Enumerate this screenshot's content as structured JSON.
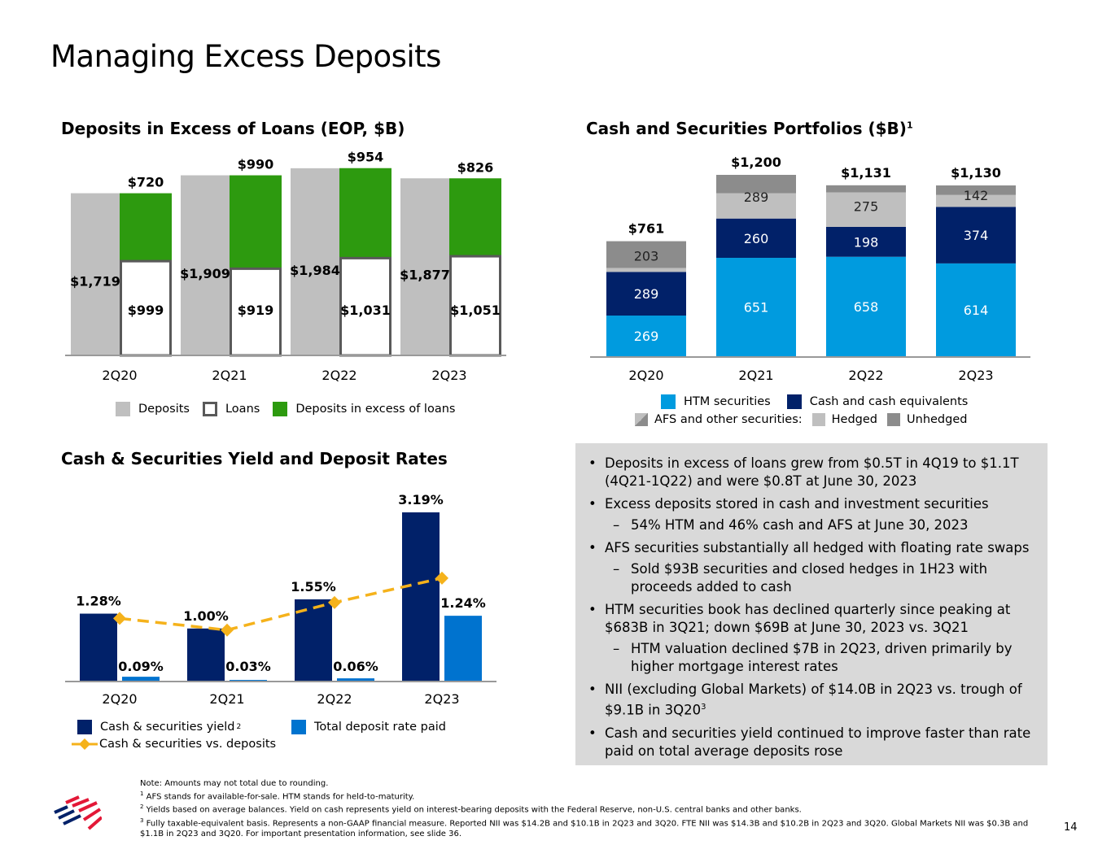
{
  "page": {
    "title": "Managing Excess Deposits",
    "page_number": "14"
  },
  "chart_data": [
    {
      "id": "deposits_vs_loans",
      "type": "bar",
      "title": "Deposits in Excess of Loans (EOP, $B)",
      "categories": [
        "2Q20",
        "2Q21",
        "2Q22",
        "2Q23"
      ],
      "series": [
        {
          "name": "Deposits",
          "values": [
            1719,
            1909,
            1984,
            1877
          ],
          "labels": [
            "$1,719",
            "$1,909",
            "$1,984",
            "$1,877"
          ],
          "color": "#bfbfbf"
        },
        {
          "name": "Loans",
          "values": [
            999,
            919,
            1031,
            1051
          ],
          "labels": [
            "$999",
            "$919",
            "$1,031",
            "$1,051"
          ],
          "color": "#ffffff"
        },
        {
          "name": "Deposits in excess of loans",
          "values": [
            720,
            990,
            954,
            826
          ],
          "labels": [
            "$720",
            "$990",
            "$954",
            "$826"
          ],
          "color": "#2d9a0f"
        }
      ],
      "stacked": "loans + excess stacked beside deposits",
      "ylim": [
        0,
        2000
      ],
      "grid": false,
      "legend": "bottom"
    },
    {
      "id": "cash_securities_portfolios",
      "type": "bar",
      "stacked": true,
      "title": "Cash and Securities Portfolios ($B)",
      "title_footnote": "1",
      "categories": [
        "2Q20",
        "2Q21",
        "2Q22",
        "2Q23"
      ],
      "totals": [
        "$761",
        "$1,200",
        "$1,131",
        "$1,130"
      ],
      "total_values": [
        761,
        1200,
        1131,
        1130
      ],
      "series": [
        {
          "name": "HTM securities",
          "values": [
            269,
            651,
            658,
            614
          ],
          "color": "#009bdf"
        },
        {
          "name": "Cash and cash equivalents",
          "values": [
            289,
            260,
            198,
            374
          ],
          "color": "#012169"
        },
        {
          "name": "AFS and other securities: Hedged",
          "values": [
            26,
            167,
            228,
            79
          ],
          "color": "#bfbfbf"
        },
        {
          "name": "AFS and other securities: Unhedged",
          "values": [
            177,
            122,
            47,
            63
          ],
          "color": "#8c8c8c"
        }
      ],
      "afs_totals": [
        203,
        289,
        275,
        142
      ],
      "ylim": [
        0,
        1250
      ],
      "grid": false,
      "legend": "bottom",
      "legend_afs_label": "AFS and other securities:",
      "legend_hedged": "Hedged",
      "legend_unhedged": "Unhedged"
    },
    {
      "id": "yield_and_rates",
      "type": "bar",
      "title": "Cash & Securities Yield and Deposit Rates",
      "categories": [
        "2Q20",
        "2Q21",
        "2Q22",
        "2Q23"
      ],
      "series": [
        {
          "name": "Cash & securities yield",
          "footnote": "2",
          "values": [
            1.28,
            1.0,
            1.55,
            3.19
          ],
          "labels": [
            "1.28%",
            "1.00%",
            "1.55%",
            "3.19%"
          ],
          "color": "#012169"
        },
        {
          "name": "Total deposit rate paid",
          "values": [
            0.09,
            0.03,
            0.06,
            1.24
          ],
          "labels": [
            "0.09%",
            "0.03%",
            "0.06%",
            "1.24%"
          ],
          "color": "#0073cf"
        },
        {
          "name": "Cash & securities vs. deposits",
          "type": "line",
          "values": [
            1.19,
            0.97,
            1.49,
            1.95
          ],
          "color": "#f5b21b",
          "style": "dashed-diamond"
        }
      ],
      "ylim": [
        0,
        3.3
      ],
      "grid": false,
      "legend": "bottom"
    }
  ],
  "bullets": [
    {
      "level": 1,
      "marker": "•",
      "text": "Deposits in excess of loans grew from $0.5T in 4Q19 to $1.1T (4Q21-1Q22) and were $0.8T at June 30, 2023"
    },
    {
      "level": 1,
      "marker": "•",
      "text": "Excess deposits stored in cash and investment securities"
    },
    {
      "level": 2,
      "marker": "–",
      "text": "54% HTM and 46% cash and AFS at June 30, 2023"
    },
    {
      "level": 1,
      "marker": "•",
      "text": "AFS securities substantially all hedged with floating rate swaps"
    },
    {
      "level": 2,
      "marker": "–",
      "text": "Sold $93B securities and closed hedges in 1H23 with proceeds added to cash"
    },
    {
      "level": 1,
      "marker": "•",
      "text": "HTM securities book has declined quarterly since peaking at $683B in 3Q21; down $69B at June 30, 2023 vs. 3Q21"
    },
    {
      "level": 2,
      "marker": "–",
      "text": "HTM valuation declined $7B in 2Q23, driven primarily by higher mortgage interest rates"
    },
    {
      "level": 1,
      "marker": "•",
      "text": "NII (excluding Global Markets) of $14.0B in 2Q23 vs. trough of $9.1B in 3Q20",
      "footnote": "3"
    },
    {
      "level": 1,
      "marker": "•",
      "text": "Cash and securities yield continued to improve faster than rate paid on total average deposits rose"
    }
  ],
  "footnotes": {
    "note": "Note: Amounts may not total due to rounding.",
    "items": [
      {
        "num": "1",
        "text": "AFS stands for available-for-sale. HTM stands for held-to-maturity."
      },
      {
        "num": "2",
        "text": "Yields based on average balances. Yield on cash represents yield on interest-bearing deposits with the Federal Reserve, non-U.S. central banks and other banks."
      },
      {
        "num": "3",
        "text": "Fully taxable-equivalent basis. Represents a non-GAAP financial measure. Reported NII was $14.2B and $10.1B in 2Q23 and 3Q20. FTE NII was $14.3B and $10.2B in 2Q23 and 3Q20. Global Markets NII was $0.3B and $1.1B in 2Q23 and 3Q20. For important presentation information, see slide 36."
      }
    ]
  },
  "logo": {
    "name": "bank-flag-logo",
    "colors": {
      "blue": "#012169",
      "red": "#e31837"
    }
  }
}
